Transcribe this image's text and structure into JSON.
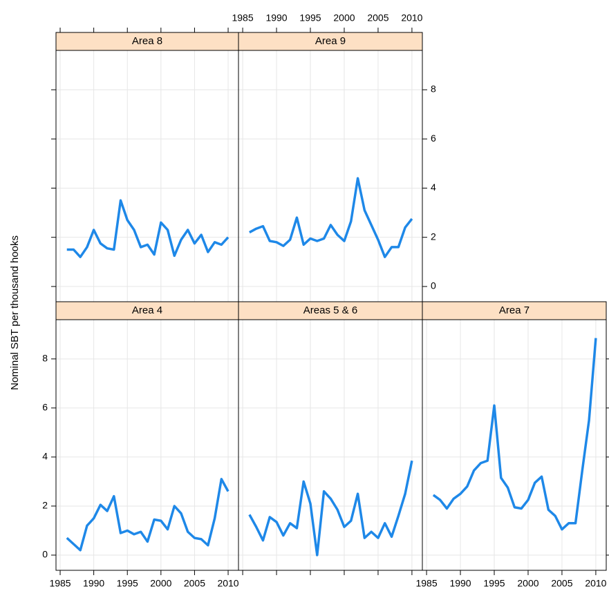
{
  "ylabel": "Nominal SBT per thousand hooks",
  "chart_data": [
    {
      "type": "line",
      "title": "Area 8",
      "line_color": "#1e88e8",
      "strip_color": "#fde0c4",
      "grid": true,
      "x": [
        1986,
        1987,
        1988,
        1989,
        1990,
        1991,
        1992,
        1993,
        1994,
        1995,
        1996,
        1997,
        1998,
        1999,
        2000,
        2001,
        2002,
        2003,
        2004,
        2005,
        2006,
        2007,
        2008,
        2009,
        2010
      ],
      "values": [
        1.5,
        1.5,
        1.2,
        1.6,
        2.3,
        1.75,
        1.55,
        1.5,
        3.5,
        2.7,
        2.3,
        1.6,
        1.7,
        1.3,
        2.6,
        2.3,
        1.25,
        1.9,
        2.3,
        1.75,
        2.1,
        1.4,
        1.8,
        1.7,
        2.0
      ],
      "xlim": [
        1984.38,
        2011.54
      ],
      "ylim": [
        -0.62,
        9.6
      ],
      "xticks": [
        1985,
        1990,
        1995,
        2000,
        2005,
        2010
      ],
      "yticks": [
        0,
        2,
        4,
        6,
        8
      ]
    },
    {
      "type": "line",
      "title": "Area 9",
      "line_color": "#1e88e8",
      "strip_color": "#fde0c4",
      "grid": true,
      "x": [
        1986,
        1987,
        1988,
        1989,
        1990,
        1991,
        1992,
        1993,
        1994,
        1995,
        1996,
        1997,
        1998,
        1999,
        2000,
        2001,
        2002,
        2003,
        2004,
        2005,
        2006,
        2007,
        2008,
        2009,
        2010
      ],
      "values": [
        2.2,
        2.35,
        2.45,
        1.85,
        1.8,
        1.65,
        1.9,
        2.8,
        1.7,
        1.95,
        1.85,
        1.95,
        2.5,
        2.1,
        1.85,
        2.65,
        4.4,
        3.1,
        2.5,
        1.9,
        1.2,
        1.6,
        1.6,
        2.4,
        2.75
      ],
      "xlim": [
        1984.38,
        2011.54
      ],
      "ylim": [
        -0.62,
        9.6
      ],
      "xticks": [
        1985,
        1990,
        1995,
        2000,
        2005,
        2010
      ],
      "yticks": [
        0,
        2,
        4,
        6,
        8
      ]
    },
    {
      "type": "line",
      "title": "Area 4",
      "line_color": "#1e88e8",
      "strip_color": "#fde0c4",
      "grid": true,
      "x": [
        1986,
        1987,
        1988,
        1989,
        1990,
        1991,
        1992,
        1993,
        1994,
        1995,
        1996,
        1997,
        1998,
        1999,
        2000,
        2001,
        2002,
        2003,
        2004,
        2005,
        2006,
        2007,
        2008,
        2009,
        2010
      ],
      "values": [
        0.7,
        0.45,
        0.2,
        1.2,
        1.5,
        2.05,
        1.8,
        2.4,
        0.9,
        1.0,
        0.85,
        0.95,
        0.55,
        1.45,
        1.4,
        1.05,
        2.0,
        1.7,
        0.95,
        0.7,
        0.65,
        0.4,
        1.5,
        3.1,
        2.6
      ],
      "xlim": [
        1984.38,
        2011.54
      ],
      "ylim": [
        -0.62,
        9.6
      ],
      "xticks": [
        1985,
        1990,
        1995,
        2000,
        2005,
        2010
      ],
      "yticks": [
        0,
        2,
        4,
        6,
        8
      ]
    },
    {
      "type": "line",
      "title": "Areas 5 & 6",
      "line_color": "#1e88e8",
      "strip_color": "#fde0c4",
      "grid": true,
      "x": [
        1986,
        1987,
        1988,
        1989,
        1990,
        1991,
        1992,
        1993,
        1994,
        1995,
        1996,
        1997,
        1998,
        1999,
        2000,
        2001,
        2002,
        2003,
        2004,
        2005,
        2006,
        2007,
        2008,
        2009,
        2010
      ],
      "values": [
        1.65,
        1.15,
        0.6,
        1.55,
        1.35,
        0.8,
        1.3,
        1.1,
        3.0,
        2.1,
        0.0,
        2.6,
        2.3,
        1.85,
        1.15,
        1.4,
        2.5,
        0.7,
        0.95,
        0.7,
        1.3,
        0.75,
        1.6,
        2.5,
        3.85
      ],
      "xlim": [
        1984.38,
        2011.54
      ],
      "ylim": [
        -0.62,
        9.6
      ],
      "xticks": [
        1985,
        1990,
        1995,
        2000,
        2005,
        2010
      ],
      "yticks": [
        0,
        2,
        4,
        6,
        8
      ]
    },
    {
      "type": "line",
      "title": "Area 7",
      "line_color": "#1e88e8",
      "strip_color": "#fde0c4",
      "grid": true,
      "x": [
        1986,
        1987,
        1988,
        1989,
        1990,
        1991,
        1992,
        1993,
        1994,
        1995,
        1996,
        1997,
        1998,
        1999,
        2000,
        2001,
        2002,
        2003,
        2004,
        2005,
        2006,
        2007,
        2008,
        2009,
        2010
      ],
      "values": [
        2.45,
        2.25,
        1.9,
        2.3,
        2.5,
        2.8,
        3.45,
        3.75,
        3.85,
        6.1,
        3.15,
        2.75,
        1.95,
        1.9,
        2.25,
        2.95,
        3.2,
        1.85,
        1.6,
        1.05,
        1.3,
        1.3,
        3.45,
        5.5,
        8.85
      ],
      "xlim": [
        1984.38,
        2011.54
      ],
      "ylim": [
        -0.62,
        9.6
      ],
      "xticks": [
        1985,
        1990,
        1995,
        2000,
        2005,
        2010
      ],
      "yticks": [
        0,
        2,
        4,
        6,
        8
      ]
    }
  ]
}
